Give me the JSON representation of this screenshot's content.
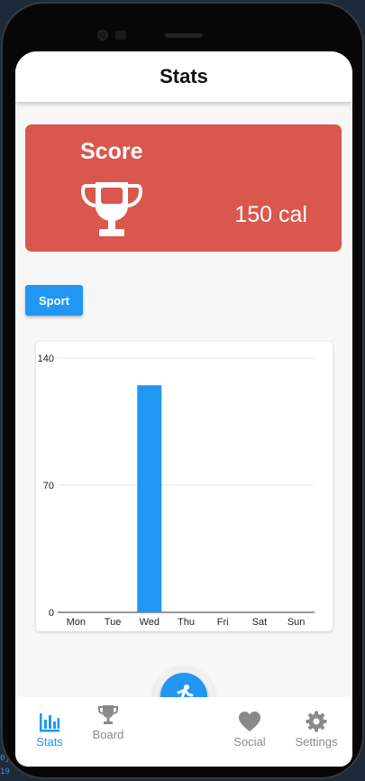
{
  "app": {
    "title": "Stats"
  },
  "score": {
    "title": "Score",
    "value": "150 cal"
  },
  "filter": {
    "label": "Sport"
  },
  "colors": {
    "accent": "#2196f3",
    "score_card": "#d9574d",
    "inactive": "#8a8a8a"
  },
  "chart_data": {
    "type": "bar",
    "categories": [
      "Mon",
      "Tue",
      "Wed",
      "Thu",
      "Fri",
      "Sat",
      "Sun"
    ],
    "values": [
      0,
      0,
      125,
      0,
      0,
      0,
      0
    ],
    "ylim": [
      0,
      140
    ],
    "yticks": [
      "0",
      "70",
      "140"
    ],
    "grid": true,
    "title": "",
    "xlabel": "",
    "ylabel": ""
  },
  "fab": {
    "icon": "running-icon"
  },
  "nav": [
    {
      "label": "Stats",
      "icon": "bar-chart-icon",
      "active": true
    },
    {
      "label": "Board",
      "icon": "trophy-icon",
      "active": false
    },
    {
      "label": "Social",
      "icon": "heart-icon",
      "active": false
    },
    {
      "label": "Settings",
      "icon": "gear-icon",
      "active": false
    }
  ]
}
